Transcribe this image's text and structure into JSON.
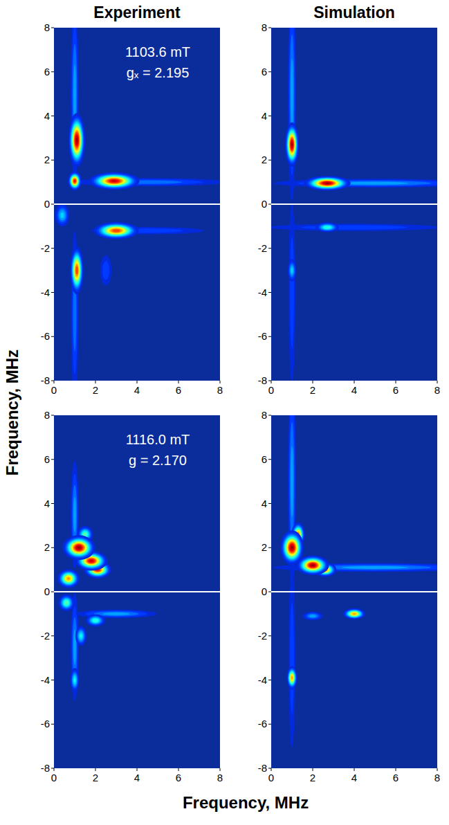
{
  "x_label": "Frequency, MHz",
  "y_label": "Frequency, MHz",
  "chart_data": [
    {
      "type": "heatmap",
      "title": "Experiment",
      "annotations": [
        "1103.6 mT",
        "gₓ = 2.195"
      ],
      "xlim": [
        0,
        8
      ],
      "ylim": [
        -8,
        8
      ],
      "xticks": [
        0,
        2,
        4,
        6,
        8
      ],
      "yticks": [
        -8,
        -6,
        -4,
        -2,
        0,
        2,
        4,
        6,
        8
      ],
      "zlim": [
        0,
        1
      ],
      "peaks": [
        {
          "x": 1.0,
          "y": 5.0,
          "intensity": 0.3,
          "width_x": 0.12,
          "width_y": 2.5
        },
        {
          "x": 1.0,
          "y": -5.0,
          "intensity": 0.25,
          "width_x": 0.12,
          "width_y": 2.5
        },
        {
          "x": 4.5,
          "y": 1.0,
          "intensity": 0.25,
          "width_x": 2.5,
          "width_y": 0.12
        },
        {
          "x": 4.5,
          "y": -1.2,
          "intensity": 0.2,
          "width_x": 2.0,
          "width_y": 0.12
        },
        {
          "x": 0.4,
          "y": -0.5,
          "intensity": 0.35,
          "width_x": 0.2,
          "width_y": 0.3
        },
        {
          "x": 2.5,
          "y": -3.0,
          "intensity": 0.2,
          "width_x": 0.2,
          "width_y": 0.5
        },
        {
          "x": 1.1,
          "y": 2.9,
          "intensity": 1.0,
          "width_x": 0.18,
          "width_y": 0.55
        },
        {
          "x": 1.0,
          "y": 1.05,
          "intensity": 0.9,
          "width_x": 0.15,
          "width_y": 0.2
        },
        {
          "x": 2.9,
          "y": 1.05,
          "intensity": 0.95,
          "width_x": 0.55,
          "width_y": 0.18
        },
        {
          "x": 3.0,
          "y": -1.2,
          "intensity": 0.85,
          "width_x": 0.5,
          "width_y": 0.18
        },
        {
          "x": 1.1,
          "y": -3.0,
          "intensity": 0.85,
          "width_x": 0.15,
          "width_y": 0.5
        }
      ]
    },
    {
      "type": "heatmap",
      "title": "Simulation",
      "xlim": [
        0,
        8
      ],
      "ylim": [
        -8,
        8
      ],
      "xticks": [
        0,
        2,
        4,
        6,
        8
      ],
      "yticks": [
        -8,
        -6,
        -4,
        -2,
        0,
        2,
        4,
        6,
        8
      ],
      "zlim": [
        0,
        1
      ],
      "peaks": [
        {
          "x": 1.0,
          "y": 5.0,
          "intensity": 0.3,
          "width_x": 0.12,
          "width_y": 3.0
        },
        {
          "x": 5.0,
          "y": 0.95,
          "intensity": 0.3,
          "width_x": 3.0,
          "width_y": 0.12
        },
        {
          "x": 1.0,
          "y": -4.0,
          "intensity": 0.2,
          "width_x": 0.12,
          "width_y": 3.0
        },
        {
          "x": 4.0,
          "y": -1.05,
          "intensity": 0.2,
          "width_x": 3.0,
          "width_y": 0.12
        },
        {
          "x": 2.7,
          "y": -1.05,
          "intensity": 0.45,
          "width_x": 0.3,
          "width_y": 0.12
        },
        {
          "x": 1.0,
          "y": -3.0,
          "intensity": 0.35,
          "width_x": 0.12,
          "width_y": 0.3
        },
        {
          "x": 1.0,
          "y": 2.7,
          "intensity": 1.0,
          "width_x": 0.15,
          "width_y": 0.45
        },
        {
          "x": 2.7,
          "y": 0.95,
          "intensity": 1.0,
          "width_x": 0.5,
          "width_y": 0.15
        }
      ]
    },
    {
      "type": "heatmap",
      "annotations": [
        "1116.0 mT",
        "g = 2.170"
      ],
      "xlim": [
        0,
        8
      ],
      "ylim": [
        -8,
        8
      ],
      "xticks": [
        0,
        2,
        4,
        6,
        8
      ],
      "yticks": [
        -8,
        -6,
        -4,
        -2,
        0,
        2,
        4,
        6,
        8
      ],
      "zlim": [
        0,
        1
      ],
      "peaks": [
        {
          "x": 1.0,
          "y": 3.5,
          "intensity": 0.3,
          "width_x": 0.12,
          "width_y": 1.5
        },
        {
          "x": 1.0,
          "y": -2.5,
          "intensity": 0.3,
          "width_x": 0.12,
          "width_y": 1.5
        },
        {
          "x": 3.0,
          "y": -1.0,
          "intensity": 0.3,
          "width_x": 1.2,
          "width_y": 0.12
        },
        {
          "x": 0.6,
          "y": -0.5,
          "intensity": 0.5,
          "width_x": 0.2,
          "width_y": 0.2
        },
        {
          "x": 1.3,
          "y": -2.0,
          "intensity": 0.4,
          "width_x": 0.15,
          "width_y": 0.25
        },
        {
          "x": 2.0,
          "y": -1.3,
          "intensity": 0.45,
          "width_x": 0.25,
          "width_y": 0.15
        },
        {
          "x": 1.0,
          "y": -4.0,
          "intensity": 0.4,
          "width_x": 0.12,
          "width_y": 0.3
        },
        {
          "x": 1.5,
          "y": 2.6,
          "intensity": 0.5,
          "width_x": 0.2,
          "width_y": 0.2
        },
        {
          "x": 0.7,
          "y": 0.6,
          "intensity": 0.75,
          "width_x": 0.25,
          "width_y": 0.2
        },
        {
          "x": 2.1,
          "y": 1.0,
          "intensity": 0.9,
          "width_x": 0.3,
          "width_y": 0.18
        },
        {
          "x": 1.8,
          "y": 1.4,
          "intensity": 0.95,
          "width_x": 0.35,
          "width_y": 0.2
        },
        {
          "x": 1.2,
          "y": 2.0,
          "intensity": 1.0,
          "width_x": 0.35,
          "width_y": 0.25
        }
      ]
    },
    {
      "type": "heatmap",
      "xlim": [
        0,
        8
      ],
      "ylim": [
        -8,
        8
      ],
      "xticks": [
        0,
        2,
        4,
        6,
        8
      ],
      "yticks": [
        -8,
        -6,
        -4,
        -2,
        0,
        2,
        4,
        6,
        8
      ],
      "zlim": [
        0,
        1
      ],
      "peaks": [
        {
          "x": 1.0,
          "y": 5.0,
          "intensity": 0.3,
          "width_x": 0.12,
          "width_y": 3.0
        },
        {
          "x": 5.0,
          "y": 1.1,
          "intensity": 0.3,
          "width_x": 3.0,
          "width_y": 0.12
        },
        {
          "x": 1.0,
          "y": -3.0,
          "intensity": 0.2,
          "width_x": 0.12,
          "width_y": 3.0
        },
        {
          "x": 2.0,
          "y": -1.1,
          "intensity": 0.3,
          "width_x": 0.3,
          "width_y": 0.12
        },
        {
          "x": 4.0,
          "y": -1.0,
          "intensity": 0.75,
          "width_x": 0.25,
          "width_y": 0.12
        },
        {
          "x": 1.0,
          "y": -3.9,
          "intensity": 0.75,
          "width_x": 0.12,
          "width_y": 0.25
        },
        {
          "x": 2.6,
          "y": 1.0,
          "intensity": 0.8,
          "width_x": 0.25,
          "width_y": 0.15
        },
        {
          "x": 1.3,
          "y": 2.6,
          "intensity": 0.8,
          "width_x": 0.15,
          "width_y": 0.25
        },
        {
          "x": 1.0,
          "y": 2.0,
          "intensity": 1.0,
          "width_x": 0.25,
          "width_y": 0.35
        },
        {
          "x": 2.0,
          "y": 1.2,
          "intensity": 1.0,
          "width_x": 0.35,
          "width_y": 0.2
        }
      ]
    }
  ]
}
